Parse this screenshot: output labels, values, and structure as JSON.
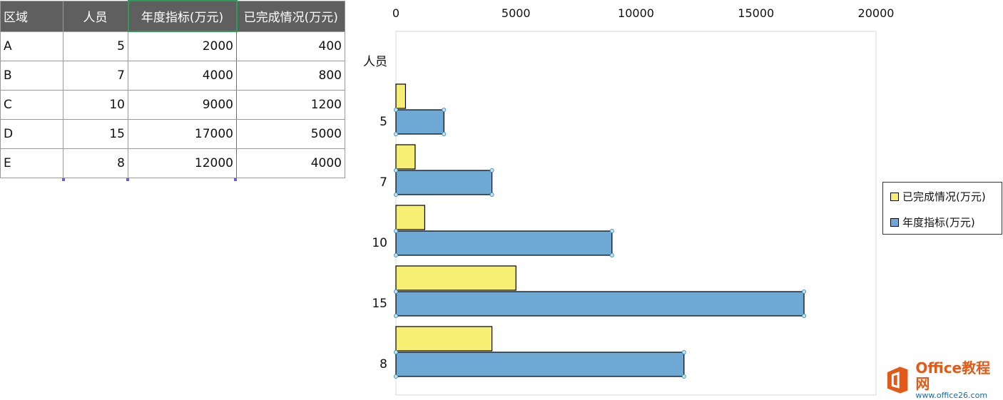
{
  "table": {
    "headers": [
      "区域",
      "人员",
      "年度指标(万元)",
      "已完成情况(万元)"
    ],
    "rows": [
      [
        "A",
        "5",
        "2000",
        "400"
      ],
      [
        "B",
        "7",
        "4000",
        "800"
      ],
      [
        "C",
        "10",
        "9000",
        "1200"
      ],
      [
        "D",
        "15",
        "17000",
        "5000"
      ],
      [
        "E",
        "8",
        "12000",
        "4000"
      ]
    ]
  },
  "chart_data": {
    "type": "bar",
    "orientation": "horizontal",
    "title": "",
    "ylabel": "人员",
    "xlabel": "",
    "categories": [
      "5",
      "7",
      "10",
      "15",
      "8"
    ],
    "series": [
      {
        "name": "已完成情况(万元)",
        "values": [
          400,
          800,
          1200,
          5000,
          4000
        ],
        "color": "#f7ef73"
      },
      {
        "name": "年度指标(万元)",
        "values": [
          2000,
          4000,
          9000,
          17000,
          12000
        ],
        "color": "#6ea8d5"
      }
    ],
    "xlim": [
      0,
      20000
    ],
    "x_ticks": [
      0,
      5000,
      10000,
      15000,
      20000
    ],
    "x_axis_position": "top",
    "grid": false,
    "legend_position": "right"
  },
  "watermark": {
    "title": "Office教程网",
    "url": "www.office26.com"
  }
}
